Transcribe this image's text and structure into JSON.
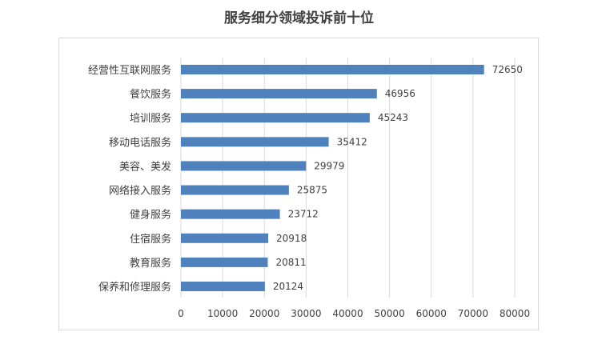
{
  "chart_data": {
    "type": "bar",
    "orientation": "horizontal",
    "title": "服务细分领域投诉前十位",
    "xlabel": "",
    "ylabel": "",
    "categories": [
      "经营性互联网服务",
      "餐饮服务",
      "培训服务",
      "移动电话服务",
      "美容、美发",
      "网络接入服务",
      "健身服务",
      "住宿服务",
      "教育服务",
      "保养和修理服务"
    ],
    "values": [
      72650,
      46956,
      45243,
      35412,
      29979,
      25875,
      23712,
      20918,
      20811,
      20124
    ],
    "xlim": [
      0,
      80000
    ],
    "x_ticks": [
      "0",
      "10000",
      "20000",
      "30000",
      "40000",
      "50000",
      "60000",
      "70000",
      "80000"
    ],
    "grid": "vertical",
    "bar_color": "#4f81bd",
    "grid_color": "#d9d9d9",
    "legend": "none"
  }
}
